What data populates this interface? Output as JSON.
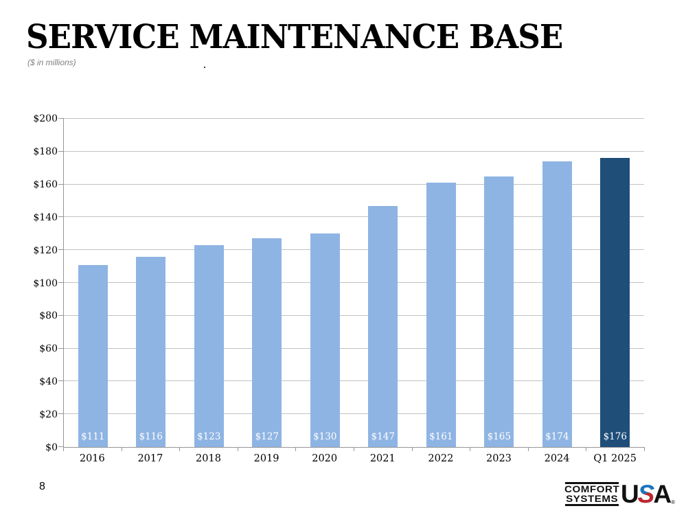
{
  "slide": {
    "title": "SERVICE MAINTENANCE BASE",
    "subtitle": "($ in millions)",
    "page_number": "8"
  },
  "chart_data": {
    "type": "bar",
    "title": "SERVICE MAINTENANCE BASE",
    "subtitle": "($ in millions)",
    "categories": [
      "2016",
      "2017",
      "2018",
      "2019",
      "2020",
      "2021",
      "2022",
      "2023",
      "2024",
      "Q1 2025"
    ],
    "values": [
      111,
      116,
      123,
      127,
      130,
      147,
      161,
      165,
      174,
      176
    ],
    "bar_labels": [
      "$111",
      "$116",
      "$123",
      "$127",
      "$130",
      "$147",
      "$161",
      "$165",
      "$174",
      "$176"
    ],
    "xlabel": "",
    "ylabel": "",
    "ylim": [
      0,
      200
    ],
    "ytick_interval": 20,
    "ytick_labels": [
      "$0",
      "$20",
      "$40",
      "$60",
      "$80",
      "$100",
      "$120",
      "$140",
      "$160",
      "$180",
      "$200"
    ],
    "grid": true,
    "legend": false,
    "bar_color_default": "#8EB4E3",
    "bar_color_highlight": "#1F4E79",
    "highlight_index": 9,
    "bar_label_color": "#FFFFFF"
  },
  "logo": {
    "line1": "COMFORT",
    "line2": "SYSTEMS",
    "usa": {
      "u": "U",
      "s": "S",
      "a": "A"
    },
    "registered": "®",
    "swoosh_blue": "#1C75BC",
    "swoosh_red": "#C1272D"
  }
}
